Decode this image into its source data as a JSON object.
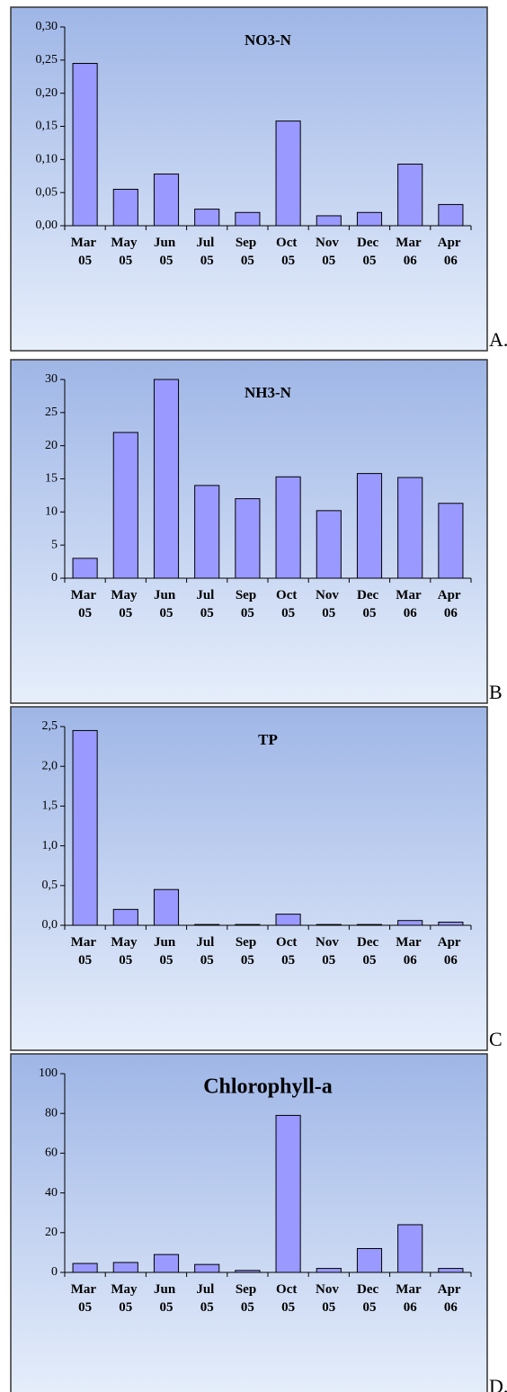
{
  "chart_data": [
    {
      "type": "bar",
      "title": "NO3-N",
      "label": "A.",
      "color": "#9999ff",
      "categories": [
        "Mar 05",
        "May 05",
        "Jun 05",
        "Jul 05",
        "Sep 05",
        "Oct 05",
        "Nov 05",
        "Dec 05",
        "Mar 06",
        "Apr 06"
      ],
      "values": [
        0.245,
        0.055,
        0.078,
        0.025,
        0.02,
        0.158,
        0.015,
        0.02,
        0.093,
        0.032
      ],
      "ylim": [
        0,
        0.3
      ],
      "yticks": [
        {
          "value": 0,
          "label": "0,00"
        },
        {
          "value": 0.05,
          "label": "0,05"
        },
        {
          "value": 0.1,
          "label": "0,10"
        },
        {
          "value": 0.15,
          "label": "0,15"
        },
        {
          "value": 0.2,
          "label": "0,20"
        },
        {
          "value": 0.25,
          "label": "0,25"
        },
        {
          "value": 0.3,
          "label": "0,30"
        }
      ]
    },
    {
      "type": "bar",
      "title": "NH3-N",
      "label": "B",
      "color": "#9999ff",
      "categories": [
        "Mar 05",
        "May 05",
        "Jun 05",
        "Jul 05",
        "Sep 05",
        "Oct 05",
        "Nov 05",
        "Dec 05",
        "Mar 06",
        "Apr 06"
      ],
      "values": [
        3,
        22,
        30,
        14,
        12,
        15.3,
        10.2,
        15.8,
        15.2,
        11.3
      ],
      "ylim": [
        0,
        30
      ],
      "yticks": [
        0,
        5,
        10,
        15,
        20,
        25,
        30
      ]
    },
    {
      "type": "bar",
      "title": "TP",
      "label": "C",
      "color": "#9999ff",
      "categories": [
        "Mar 05",
        "May 05",
        "Jun 05",
        "Jul 05",
        "Sep 05",
        "Oct 05",
        "Nov 05",
        "Dec 05",
        "Mar 06",
        "Apr 06"
      ],
      "values": [
        2.45,
        0.2,
        0.45,
        0.01,
        0.01,
        0.14,
        0.01,
        0.01,
        0.06,
        0.04
      ],
      "ylim": [
        0,
        2.5
      ],
      "yticks": [
        {
          "value": 0,
          "label": "0,0"
        },
        {
          "value": 0.5,
          "label": "0,5"
        },
        {
          "value": 1,
          "label": "1,0"
        },
        {
          "value": 1.5,
          "label": "1,5"
        },
        {
          "value": 2,
          "label": "2,0"
        },
        {
          "value": 2.5,
          "label": "2,5"
        }
      ]
    },
    {
      "type": "bar",
      "title": "Chlorophyll-a",
      "label": "D.",
      "color": "#9999ff",
      "categories": [
        "Mar 05",
        "May 05",
        "Jun 05",
        "Jul 05",
        "Sep 05",
        "Oct 05",
        "Nov 05",
        "Dec 05",
        "Mar 06",
        "Apr 06"
      ],
      "values": [
        4.5,
        5,
        9,
        4,
        1,
        79,
        2,
        12,
        24,
        2
      ],
      "ylim": [
        0,
        100
      ],
      "yticks": [
        0,
        20,
        40,
        60,
        80,
        100
      ]
    }
  ]
}
